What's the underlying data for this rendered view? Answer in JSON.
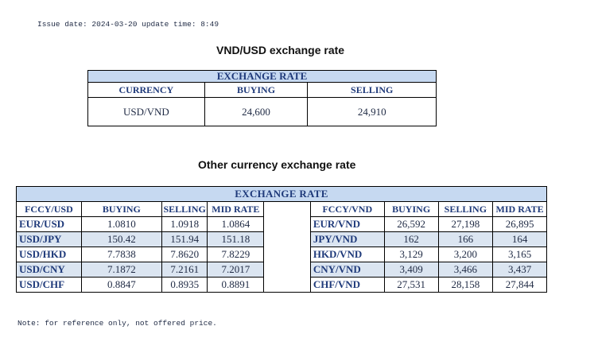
{
  "issue_line": "Issue date: 2024-03-20 update time: 8:49",
  "main_title": "VND/USD exchange rate",
  "main_table": {
    "band": "EXCHANGE RATE",
    "headers": [
      "CURRENCY",
      "BUYING",
      "SELLING"
    ],
    "row": [
      "USD/VND",
      "24,600",
      "24,910"
    ]
  },
  "other_title": "Other currency exchange rate",
  "other_table": {
    "band": "EXCHANGE  RATE",
    "left_headers": [
      "FCCY/USD",
      "BUYING",
      "SELLING",
      "MID RATE"
    ],
    "right_headers": [
      "FCCY/VND",
      "BUYING",
      "SELLING",
      "MID RATE"
    ],
    "rows": [
      {
        "l": [
          "EUR/USD",
          "1.0810",
          "1.0918",
          "1.0864"
        ],
        "r": [
          "EUR/VND",
          "26,592",
          "27,198",
          "26,895"
        ]
      },
      {
        "l": [
          "USD/JPY",
          "150.42",
          "151.94",
          "151.18"
        ],
        "r": [
          "JPY/VND",
          "162",
          "166",
          "164"
        ]
      },
      {
        "l": [
          "USD/HKD",
          "7.7838",
          "7.8620",
          "7.8229"
        ],
        "r": [
          "HKD/VND",
          "3,129",
          "3,200",
          "3,165"
        ]
      },
      {
        "l": [
          "USD/CNY",
          "7.1872",
          "7.2161",
          "7.2017"
        ],
        "r": [
          "CNY/VND",
          "3,409",
          "3,466",
          "3,437"
        ]
      },
      {
        "l": [
          "USD/CHF",
          "0.8847",
          "0.8935",
          "0.8891"
        ],
        "r": [
          "CHF/VND",
          "27,531",
          "28,158",
          "27,844"
        ]
      }
    ]
  },
  "note_line": "Note: for reference only, not offered price.",
  "colors": {
    "band_bg": "#c6d9f1",
    "alt_row_bg": "#dbe5f1",
    "header_text": "#1f3a7a"
  }
}
